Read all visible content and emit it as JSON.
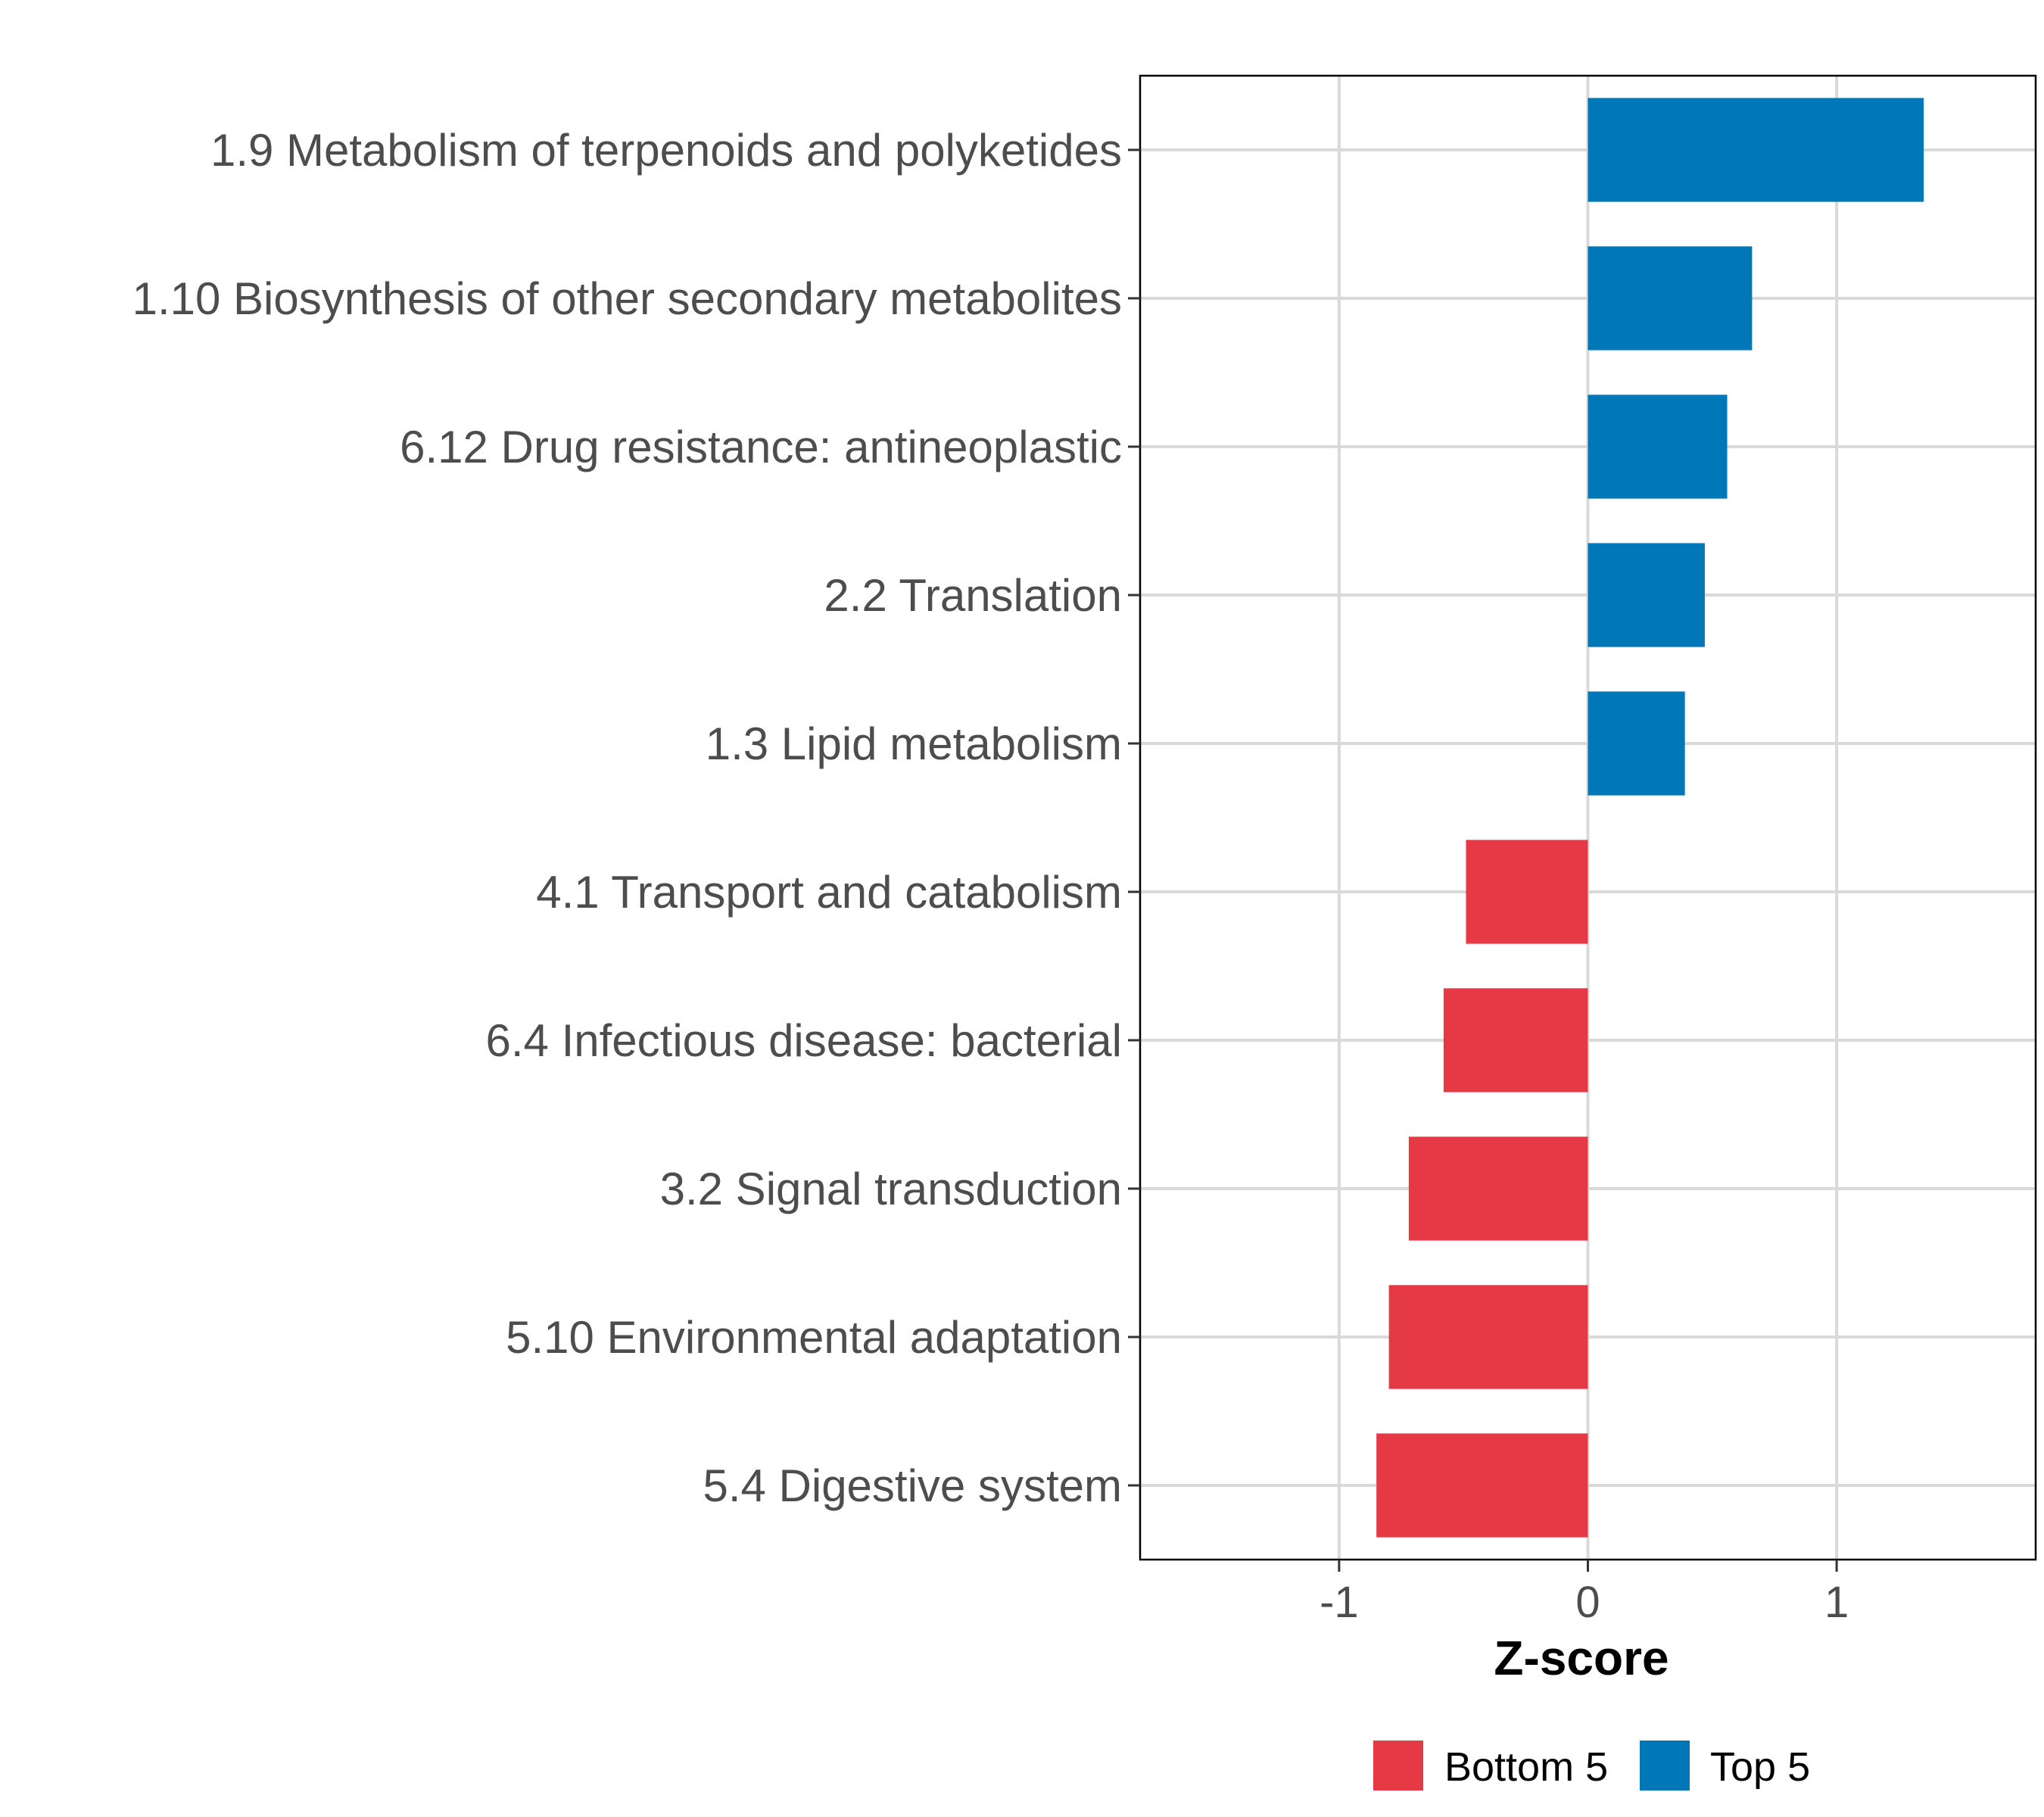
{
  "chart_data": {
    "type": "bar",
    "orientation": "horizontal",
    "title": "",
    "xlabel": "Z-score",
    "ylabel": "",
    "xlim": [
      -1.8,
      1.8
    ],
    "xticks": [
      -1,
      0,
      1
    ],
    "xtick_labels": [
      "-1",
      "0",
      "1"
    ],
    "grid": true,
    "legend_position": "bottom",
    "colors": {
      "Bottom 5": "#E63946",
      "Top 5": "#0077B6"
    },
    "legend": [
      "Bottom 5",
      "Top 5"
    ],
    "categories": [
      "1.9 Metabolism of terpenoids and polyketides",
      "1.10 Biosynthesis of other secondary metabolites",
      "6.12 Drug resistance: antineoplastic",
      "2.2 Translation",
      "1.3 Lipid metabolism",
      "4.1 Transport and catabolism",
      "6.4 Infectious disease: bacterial",
      "3.2 Signal transduction",
      "5.10 Environmental adaptation",
      "5.4 Digestive system"
    ],
    "values": [
      1.35,
      0.66,
      0.56,
      0.47,
      0.39,
      -0.49,
      -0.58,
      -0.72,
      -0.8,
      -0.85
    ],
    "groups": [
      "Top 5",
      "Top 5",
      "Top 5",
      "Top 5",
      "Top 5",
      "Bottom 5",
      "Bottom 5",
      "Bottom 5",
      "Bottom 5",
      "Bottom 5"
    ]
  }
}
